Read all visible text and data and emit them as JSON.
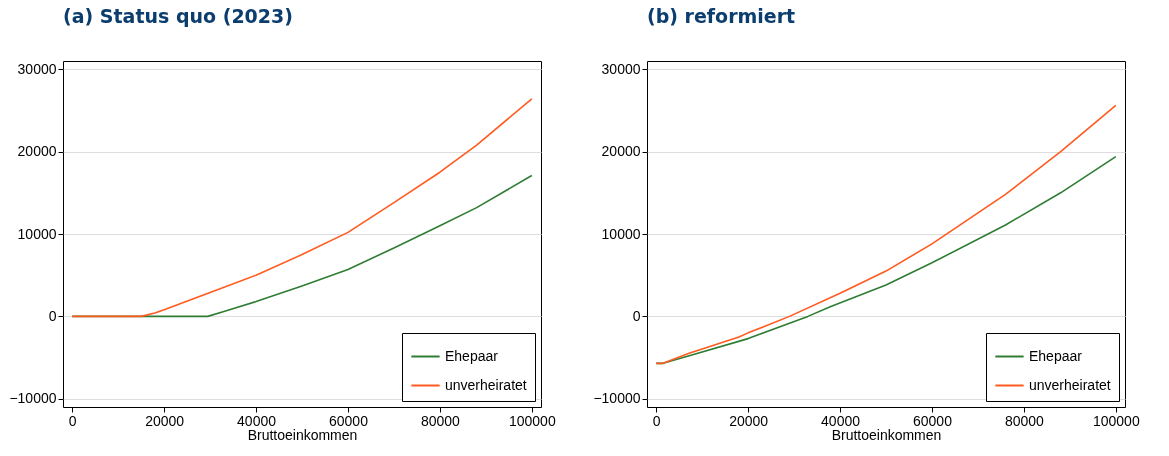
{
  "chart_data": [
    {
      "type": "line",
      "title": "(a) Status quo (2023)",
      "xlabel": "Bruttoeinkommen",
      "xlim": [
        -2000,
        102000
      ],
      "xticks": [
        0,
        20000,
        40000,
        60000,
        80000,
        100000
      ],
      "ylim": [
        -11000,
        31000
      ],
      "yticks": [
        -10000,
        0,
        10000,
        20000,
        30000
      ],
      "grid": "y",
      "legend": "bottom right",
      "series": [
        {
          "name": "Ehepaar",
          "color": "#2e7d32",
          "x": [
            0,
            15000,
            29500,
            33000,
            40000,
            50000,
            60000,
            70000,
            80000,
            88000,
            100000
          ],
          "values": [
            0,
            0,
            0,
            600,
            1800,
            3700,
            5700,
            8300,
            11000,
            13200,
            17100
          ]
        },
        {
          "name": "unverheiratet",
          "color": "#ff5a1f",
          "x": [
            0,
            15000,
            18000,
            20000,
            30000,
            40000,
            50000,
            60000,
            70000,
            80000,
            88000,
            100000
          ],
          "values": [
            0,
            0,
            400,
            800,
            2900,
            5000,
            7500,
            10200,
            13800,
            17500,
            20800,
            26400
          ]
        }
      ]
    },
    {
      "type": "line",
      "title": "(b) reformiert",
      "xlabel": "Bruttoeinkommen",
      "xlim": [
        -2000,
        102000
      ],
      "xticks": [
        0,
        20000,
        40000,
        60000,
        80000,
        100000
      ],
      "ylim": [
        -11000,
        31000
      ],
      "yticks": [
        -10000,
        0,
        10000,
        20000,
        30000
      ],
      "grid": "y",
      "legend": "bottom right",
      "series": [
        {
          "name": "Ehepaar",
          "color": "#2e7d32",
          "x": [
            0,
            1500,
            7000,
            20000,
            33000,
            38000,
            50000,
            60000,
            76000,
            88000,
            100000
          ],
          "values": [
            -5700,
            -5700,
            -4800,
            -2700,
            0,
            1200,
            3800,
            6500,
            11100,
            15000,
            19400
          ]
        },
        {
          "name": "unverheiratet",
          "color": "#ff5a1f",
          "x": [
            0,
            1500,
            7000,
            18000,
            20000,
            29000,
            40000,
            50000,
            60000,
            76000,
            88000,
            100000
          ],
          "values": [
            -5700,
            -5700,
            -4500,
            -2500,
            -2000,
            0,
            2800,
            5500,
            8800,
            14800,
            20000,
            25600
          ]
        }
      ]
    }
  ]
}
